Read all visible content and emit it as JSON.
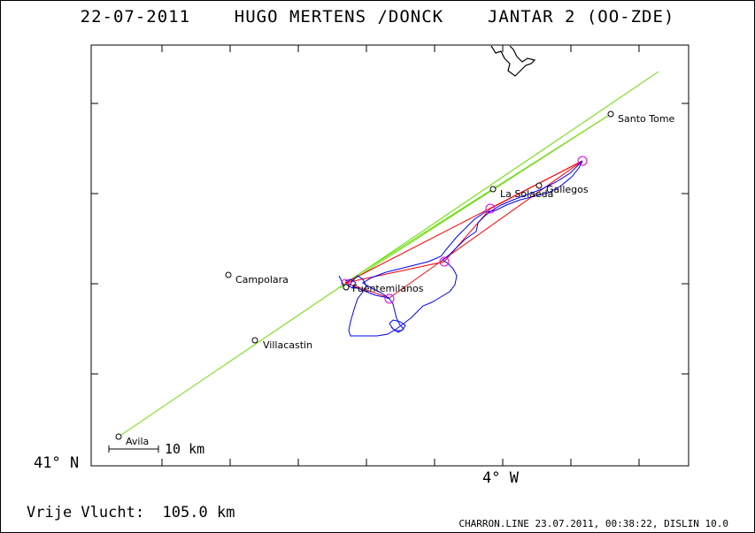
{
  "header": {
    "date": "22-07-2011",
    "pilot": "HUGO MERTENS /DONCK",
    "glider": "JANTAR 2 (OO-ZDE)"
  },
  "axes": {
    "lat_label": "41° N",
    "lon_label": "4° W"
  },
  "scale": {
    "label": "10 km"
  },
  "distance": {
    "label": "Vrije Vlucht:",
    "value": "105.0 km"
  },
  "footer": "CHARRON.LINE 23.07.2011, 00:38:22, DISLIN 10.0",
  "places": [
    {
      "name": "Santo Tome"
    },
    {
      "name": "La Solaeda"
    },
    {
      "name": "Gallegos"
    },
    {
      "name": "Campolara"
    },
    {
      "name": "Fuentemilanos"
    },
    {
      "name": "Villacastin"
    },
    {
      "name": "Avila"
    }
  ],
  "colors": {
    "track": "#0000ff",
    "task": "#ff0000",
    "sector": "#66dd00",
    "turnpoint": "#dd00dd",
    "coast": "#000000"
  }
}
